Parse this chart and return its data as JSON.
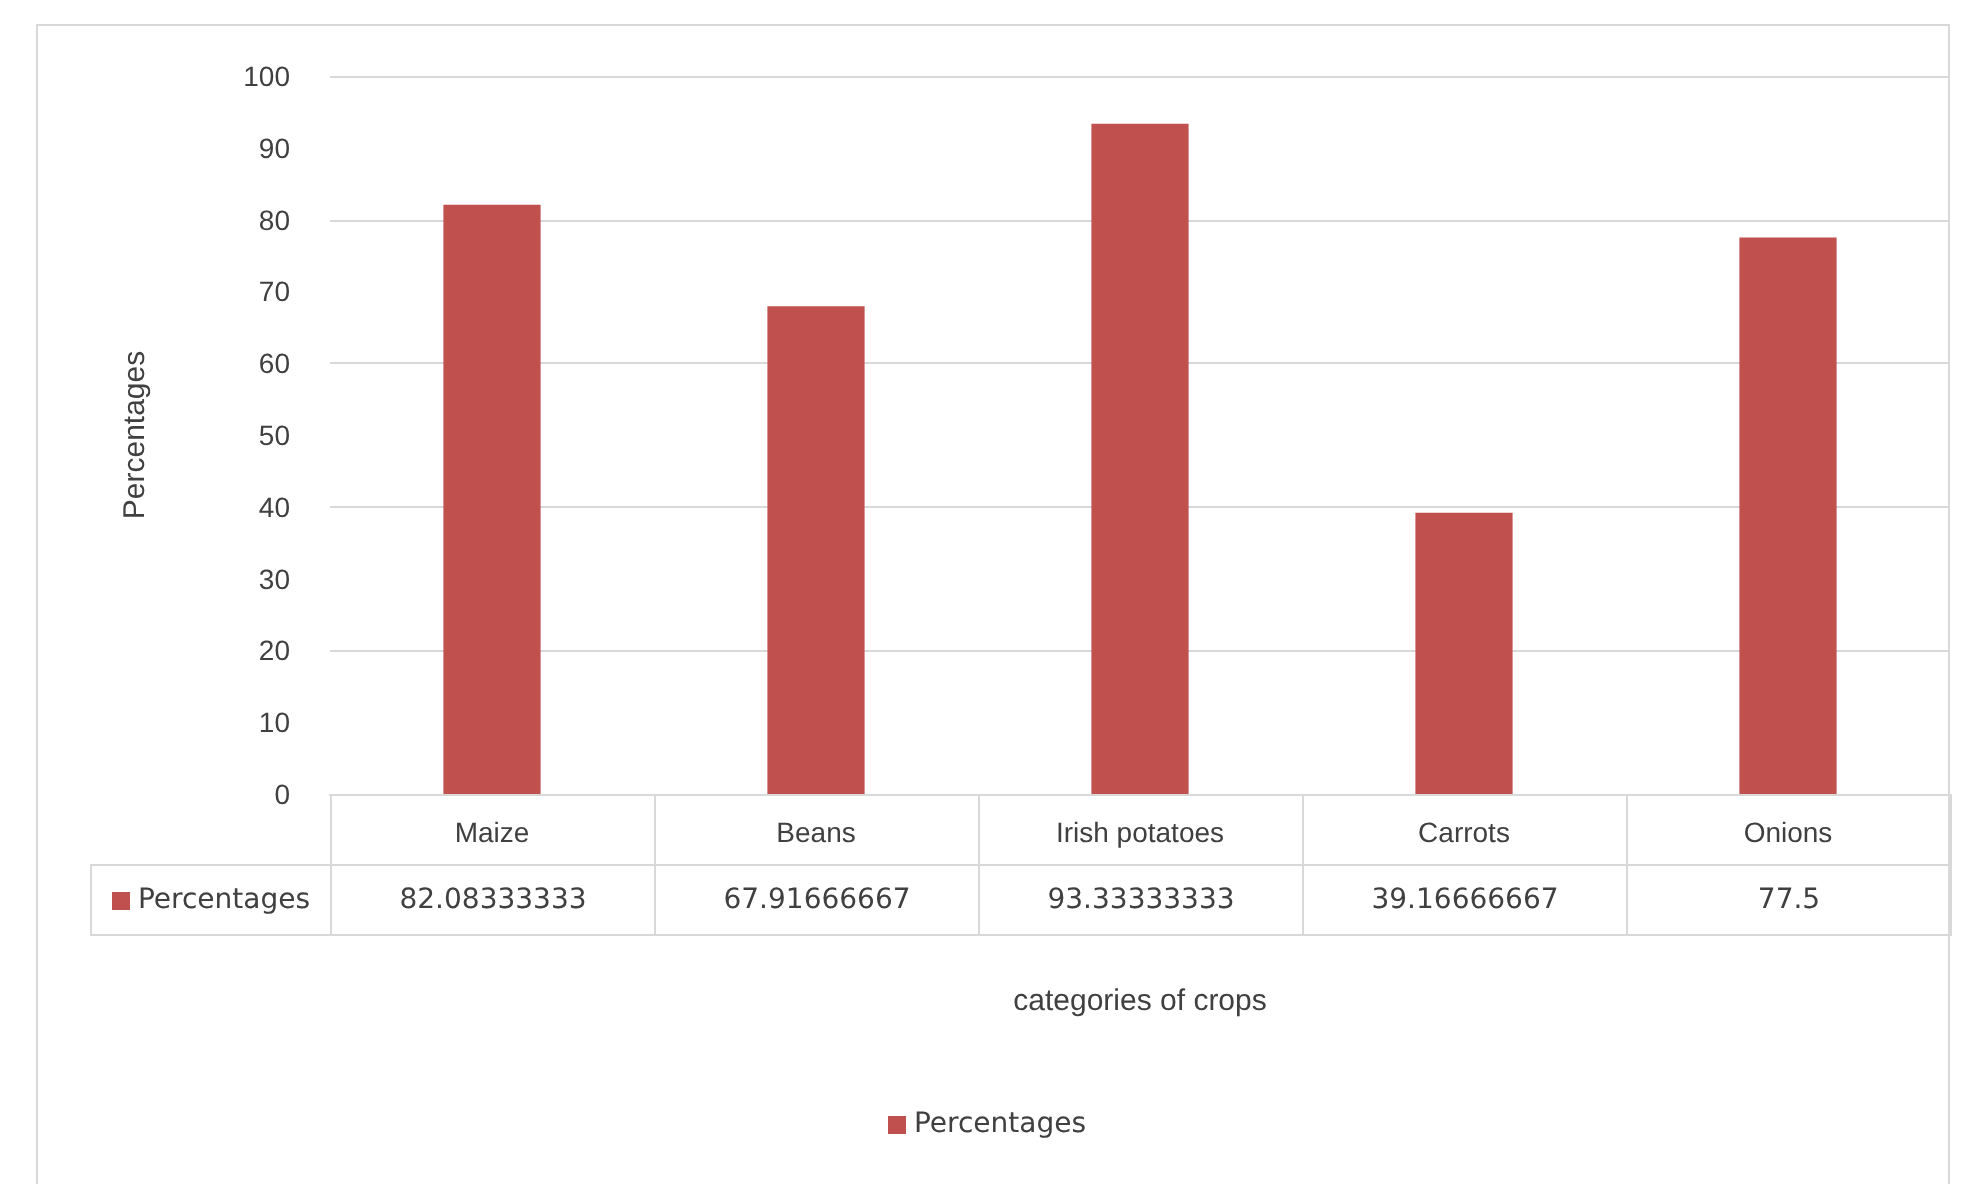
{
  "chart_data": {
    "type": "bar",
    "xlabel": "categories of crops",
    "ylabel": "Percentages",
    "categories": [
      "Maize",
      "Beans",
      "Irish potatoes",
      "Carrots",
      "Onions"
    ],
    "series": [
      {
        "name": "Percentages",
        "color": "#c0504d",
        "values": [
          82.08333333,
          67.91666667,
          93.33333333,
          39.16666667,
          77.5
        ]
      }
    ],
    "ylim": [
      0,
      100
    ],
    "yticks": [
      0,
      10,
      20,
      30,
      40,
      50,
      60,
      70,
      80,
      90,
      100
    ],
    "grid": "y",
    "legend": "bottom",
    "data_labels": true
  }
}
